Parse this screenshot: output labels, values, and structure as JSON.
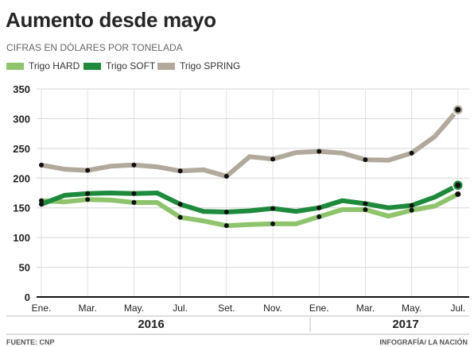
{
  "chart_data": {
    "type": "line",
    "title": "Aumento desde mayo",
    "subtitle": "CIFRAS EN DÓLARES POR TONELADA",
    "x": [
      "2016-01",
      "2016-02",
      "2016-03",
      "2016-04",
      "2016-05",
      "2016-06",
      "2016-07",
      "2016-08",
      "2016-09",
      "2016-10",
      "2016-11",
      "2016-12",
      "2017-01",
      "2017-02",
      "2017-03",
      "2017-04",
      "2017-05",
      "2017-06",
      "2017-07"
    ],
    "x_tick_values": [
      "2016-01",
      "2016-03",
      "2016-05",
      "2016-07",
      "2016-09",
      "2016-11",
      "2017-01",
      "2017-03",
      "2017-05",
      "2017-07"
    ],
    "x_tick_labels": [
      "Ene.",
      "Mar.",
      "May.",
      "Jul.",
      "Set.",
      "Nov.",
      "Ene.",
      "Mar.",
      "May.",
      "Jul."
    ],
    "year_labels": [
      "2016",
      "2017"
    ],
    "ylim": [
      0,
      350
    ],
    "y_ticks": [
      0,
      50,
      100,
      150,
      200,
      250,
      300,
      350
    ],
    "grid": true,
    "legend_position": "top-left",
    "series": [
      {
        "name": "Trigo HARD",
        "color": "#8dc46c",
        "values": [
          162,
          160,
          164,
          163,
          159,
          159,
          134,
          128,
          120,
          122,
          123,
          123,
          135,
          147,
          147,
          136,
          146,
          153,
          173
        ]
      },
      {
        "name": "Trigo SOFT",
        "color": "#1e8a3c",
        "values": [
          156,
          171,
          174,
          175,
          174,
          175,
          156,
          144,
          143,
          145,
          149,
          144,
          150,
          162,
          157,
          150,
          154,
          168,
          188
        ]
      },
      {
        "name": "Trigo SPRING",
        "color": "#b1a99c",
        "values": [
          222,
          215,
          213,
          220,
          222,
          219,
          212,
          214,
          203,
          236,
          232,
          243,
          245,
          242,
          231,
          230,
          242,
          270,
          315
        ]
      }
    ]
  },
  "footer": {
    "source": "FUENTE: CNP",
    "credit": "INFOGRAFÍA/ LA NACIÓN"
  }
}
